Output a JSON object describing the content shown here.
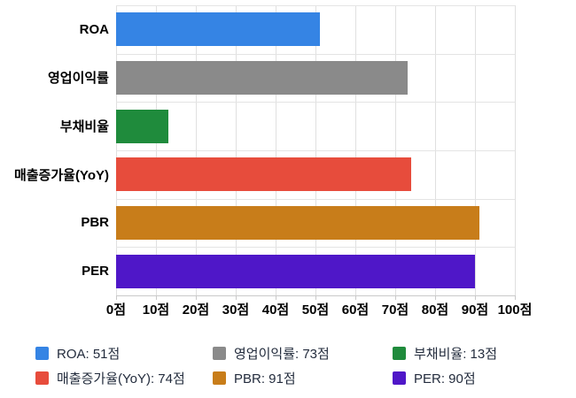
{
  "chart_data": {
    "type": "bar",
    "orientation": "horizontal",
    "title": "",
    "categories": [
      "ROA",
      "영업이익률",
      "부채비율",
      "매출증가율(YoY)",
      "PBR",
      "PER"
    ],
    "values": [
      51,
      73,
      13,
      74,
      91,
      90
    ],
    "unit": "점",
    "series_colors": [
      "#3584e4",
      "#8a8a8a",
      "#1f8b3c",
      "#e74c3c",
      "#c87d1a",
      "#4f17c8"
    ],
    "xlim": [
      0,
      100
    ],
    "x_tick_labels": [
      "0점",
      "10점",
      "20점",
      "30점",
      "40점",
      "50점",
      "60점",
      "70점",
      "80점",
      "90점",
      "100점"
    ],
    "grid": true,
    "legend_position": "bottom",
    "legend": [
      {
        "label": "ROA: 51점",
        "color": "#3584e4"
      },
      {
        "label": "영업이익률: 73점",
        "color": "#8a8a8a"
      },
      {
        "label": "부채비율: 13점",
        "color": "#1f8b3c"
      },
      {
        "label": "매출증가율(YoY): 74점",
        "color": "#e74c3c"
      },
      {
        "label": "PBR: 91점",
        "color": "#c87d1a"
      },
      {
        "label": "PER: 90점",
        "color": "#4f17c8"
      }
    ]
  }
}
